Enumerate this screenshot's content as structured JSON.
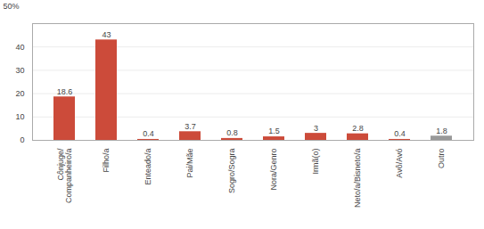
{
  "chart_data": {
    "type": "bar",
    "categories": [
      "Cônjuge/\nCompanheiro/a",
      "Filho/a",
      "Enteado/a",
      "Pai/Mãe",
      "Sogro/Sogra",
      "Nora/Genro",
      "Irmã(o)",
      "Neto/a/Bisneto/a",
      "Avô/Avó",
      "Outro"
    ],
    "values": [
      18.6,
      43,
      0.4,
      3.7,
      0.8,
      1.5,
      3,
      2.8,
      0.4,
      1.8
    ],
    "colors": [
      "#cc4b3a",
      "#cc4b3a",
      "#cc4b3a",
      "#cc4b3a",
      "#cc4b3a",
      "#cc4b3a",
      "#cc4b3a",
      "#cc4b3a",
      "#cc4b3a",
      "#999999"
    ],
    "ylabel": "50%",
    "ylim": [
      0,
      50
    ],
    "yticks": [
      0,
      10,
      20,
      30,
      40
    ],
    "grid": true,
    "data_labels": true
  }
}
